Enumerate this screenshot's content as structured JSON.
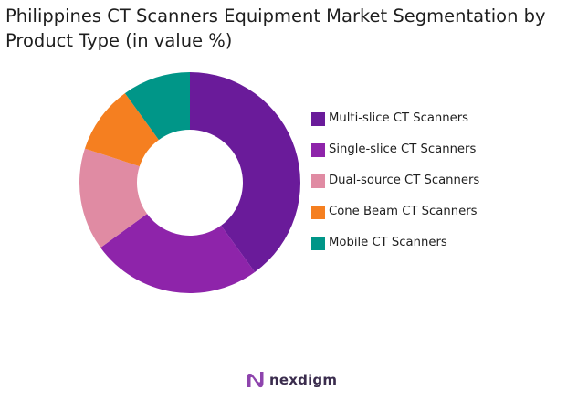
{
  "chart_data": {
    "type": "pie",
    "title": "Philippines CT Scanners Equipment Market Segmentation by Product Type (in value %)",
    "categories": [
      "Multi-slice CT Scanners",
      "Single-slice CT Scanners",
      "Dual-source CT Scanners",
      "Cone Beam CT Scanners",
      "Mobile CT Scanners"
    ],
    "values": [
      40,
      25,
      15,
      10,
      10
    ],
    "colors": [
      "#6a1b9a",
      "#8e24aa",
      "#e08ba3",
      "#f57f20",
      "#009688"
    ],
    "donut": true,
    "legend_position": "right"
  },
  "branding": {
    "logo_text": "nexdigm",
    "logo_icon": "nexdigm-n-logo-icon"
  }
}
